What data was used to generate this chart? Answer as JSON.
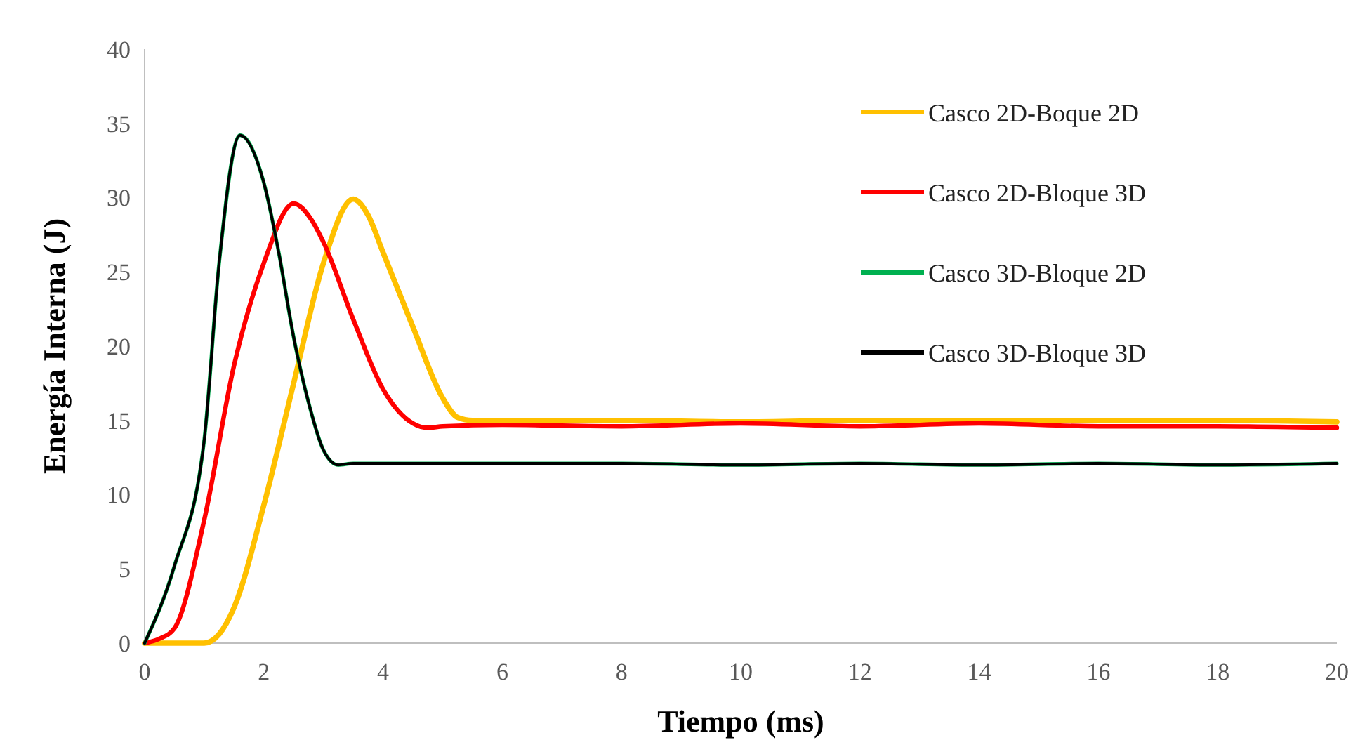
{
  "chart_data": {
    "type": "line",
    "xlabel": "Tiempo (ms)",
    "ylabel": "Energía Interna (J)",
    "xlim": [
      0,
      20
    ],
    "xticks": [
      0,
      2,
      4,
      6,
      8,
      10,
      12,
      14,
      16,
      18,
      20
    ],
    "ylim": [
      0,
      40
    ],
    "yticks": [
      0,
      5,
      10,
      15,
      20,
      25,
      30,
      35,
      40
    ],
    "grid": false,
    "legend": "top right",
    "line_style": "solid",
    "series": [
      {
        "name": "Casco 2D-Boque 2D",
        "color": "#ffc000",
        "x": [
          0,
          0.5,
          1,
          1.25,
          1.5,
          2,
          2.5,
          3,
          3.5,
          3.75,
          4,
          4.5,
          5,
          5.25,
          5.5,
          6,
          8,
          10,
          12,
          14,
          16,
          18,
          20
        ],
        "values": [
          0,
          0,
          0,
          0.6,
          2.4,
          9.3,
          17.5,
          25.6,
          29.9,
          28.8,
          26.3,
          21.3,
          16.5,
          15.2,
          15,
          15,
          15,
          14.9,
          15,
          15,
          15,
          15,
          14.9
        ]
      },
      {
        "name": "Casco 2D-Bloque 3D",
        "color": "#ff0000",
        "x": [
          0,
          0.25,
          0.5,
          1,
          1.5,
          2,
          2.5,
          2.8,
          3,
          3.5,
          4,
          4.5,
          4.75,
          5,
          6,
          8,
          10,
          12,
          14,
          16,
          18,
          20
        ],
        "values": [
          0,
          0.3,
          1,
          8.3,
          18.7,
          25.6,
          29.6,
          28.5,
          27,
          21.8,
          17.1,
          14.8,
          14.5,
          14.6,
          14.7,
          14.6,
          14.8,
          14.6,
          14.8,
          14.6,
          14.6,
          14.5
        ]
      },
      {
        "name": "Casco 3D-Bloque 2D",
        "color": "#00b050",
        "x": [
          0,
          0.5,
          1,
          1.25,
          1.6,
          2,
          2.25,
          2.5,
          2.75,
          3,
          3.25,
          3.5,
          4,
          6,
          8,
          10,
          12,
          14,
          16,
          18,
          20
        ],
        "values": [
          0,
          5.2,
          13.7,
          25.6,
          34.2,
          31,
          26.3,
          20.6,
          16.2,
          13,
          12,
          12.1,
          12.1,
          12.1,
          12.1,
          12,
          12.1,
          12,
          12.1,
          12,
          12.1
        ]
      },
      {
        "name": "Casco 3D-Bloque 3D",
        "color": "#000000",
        "x": [
          0,
          0.5,
          1,
          1.25,
          1.6,
          2,
          2.25,
          2.5,
          2.75,
          3,
          3.25,
          3.5,
          4,
          6,
          8,
          10,
          12,
          14,
          16,
          18,
          20
        ],
        "values": [
          0,
          5.2,
          13.7,
          25.6,
          34.2,
          31,
          26.3,
          20.6,
          16.2,
          13,
          12,
          12.1,
          12.1,
          12.1,
          12.1,
          12,
          12.1,
          12,
          12.1,
          12,
          12.1
        ]
      }
    ]
  }
}
